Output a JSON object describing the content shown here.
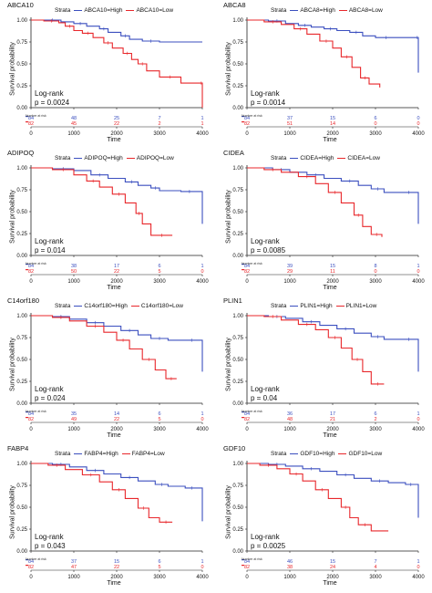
{
  "figure": {
    "y_axis_label": "Survival probability",
    "x_axis_label": "Time",
    "legend_title": "Strata",
    "test_name": "Log-rank",
    "number_at_risk_label": "Number at risk",
    "colors": {
      "high": "#3b4fbf",
      "low": "#e8272b"
    }
  },
  "panels": [
    {
      "gene": "ABCA10",
      "high_label": "ABCA10=High",
      "low_label": "ABCA10=Low",
      "pvalue": "p = 0.0024",
      "nar_high": [
        "84",
        "48",
        "25",
        "7",
        "1"
      ],
      "nar_low": [
        "82",
        "45",
        "22",
        "2",
        "1"
      ]
    },
    {
      "gene": "ABCA8",
      "high_label": "ABCA8=High",
      "low_label": "ABCA8=Low",
      "pvalue": "p = 0.0014",
      "nar_high": [
        "84",
        "37",
        "15",
        "6",
        "0"
      ],
      "nar_low": [
        "82",
        "51",
        "14",
        "0",
        "0"
      ]
    },
    {
      "gene": "ADIPOQ",
      "high_label": "ADIPOQ=High",
      "low_label": "ADIPOQ=Low",
      "pvalue": "p = 0.014",
      "nar_high": [
        "84",
        "38",
        "17",
        "6",
        "1"
      ],
      "nar_low": [
        "82",
        "50",
        "22",
        "5",
        "0"
      ]
    },
    {
      "gene": "CIDEA",
      "high_label": "CIDEA=High",
      "low_label": "CIDEA=Low",
      "pvalue": "p = 0.0085",
      "nar_high": [
        "84",
        "39",
        "15",
        "8",
        "1"
      ],
      "nar_low": [
        "82",
        "29",
        "11",
        "0",
        "0"
      ]
    },
    {
      "gene": "C14orf180",
      "high_label": "C14orf180=High",
      "low_label": "C14orf180=Low",
      "pvalue": "p = 0.024",
      "nar_high": [
        "84",
        "35",
        "14",
        "6",
        "1"
      ],
      "nar_low": [
        "82",
        "49",
        "22",
        "5",
        "0"
      ]
    },
    {
      "gene": "PLIN1",
      "high_label": "PLIN1=High",
      "low_label": "PLIN1=Low",
      "pvalue": "p = 0.04",
      "nar_high": [
        "84",
        "36",
        "17",
        "6",
        "1"
      ],
      "nar_low": [
        "82",
        "48",
        "21",
        "2",
        "0"
      ]
    },
    {
      "gene": "FABP4",
      "high_label": "FABP4=High",
      "low_label": "FABP4=Low",
      "pvalue": "p = 0.043",
      "nar_high": [
        "84",
        "37",
        "15",
        "6",
        "1"
      ],
      "nar_low": [
        "82",
        "47",
        "22",
        "5",
        "0"
      ]
    },
    {
      "gene": "GDF10",
      "high_label": "GDF10=High",
      "low_label": "GDF10=Low",
      "pvalue": "p = 0.0025",
      "nar_high": [
        "84",
        "46",
        "15",
        "7",
        "1"
      ],
      "nar_low": [
        "82",
        "38",
        "24",
        "4",
        "0"
      ]
    }
  ],
  "chart_data": [
    {
      "type": "line",
      "title": "ABCA10",
      "xlabel": "Time",
      "ylabel": "Survival probability",
      "xlim": [
        0,
        4000
      ],
      "ylim": [
        0,
        1
      ],
      "x_ticks": [
        0,
        1000,
        2000,
        3000,
        4000
      ],
      "y_ticks": [
        0,
        0.25,
        0.5,
        0.75,
        1.0
      ],
      "series": [
        {
          "name": "ABCA10=High",
          "x": [
            0,
            300,
            700,
            1000,
            1300,
            1600,
            1800,
            2100,
            2300,
            2600,
            3000,
            4000
          ],
          "y": [
            1.0,
            1.0,
            0.98,
            0.96,
            0.93,
            0.9,
            0.86,
            0.82,
            0.78,
            0.76,
            0.75,
            0.75
          ]
        },
        {
          "name": "ABCA10=Low",
          "x": [
            0,
            300,
            650,
            800,
            1000,
            1200,
            1450,
            1700,
            1900,
            2150,
            2350,
            2500,
            2700,
            3000,
            3500,
            3950,
            4000
          ],
          "y": [
            1.0,
            0.99,
            0.97,
            0.93,
            0.88,
            0.85,
            0.8,
            0.74,
            0.68,
            0.62,
            0.55,
            0.5,
            0.42,
            0.35,
            0.28,
            0.28,
            0.0
          ]
        }
      ]
    },
    {
      "type": "line",
      "title": "ABCA8",
      "xlabel": "Time",
      "ylabel": "Survival probability",
      "xlim": [
        0,
        4000
      ],
      "ylim": [
        0,
        1
      ],
      "x_ticks": [
        0,
        1000,
        2000,
        3000,
        4000
      ],
      "y_ticks": [
        0,
        0.25,
        0.5,
        0.75,
        1.0
      ],
      "series": [
        {
          "name": "ABCA8=High",
          "x": [
            0,
            500,
            900,
            1200,
            1500,
            1800,
            2100,
            2400,
            2700,
            3000,
            3500,
            3950,
            4000
          ],
          "y": [
            1.0,
            0.99,
            0.96,
            0.94,
            0.92,
            0.9,
            0.88,
            0.86,
            0.82,
            0.8,
            0.8,
            0.8,
            0.4
          ]
        },
        {
          "name": "ABCA8=Low",
          "x": [
            0,
            400,
            800,
            1100,
            1400,
            1700,
            2000,
            2200,
            2450,
            2650,
            2850,
            3100
          ],
          "y": [
            1.0,
            0.98,
            0.95,
            0.9,
            0.84,
            0.76,
            0.68,
            0.58,
            0.46,
            0.34,
            0.27,
            0.23
          ]
        }
      ]
    },
    {
      "type": "line",
      "title": "ADIPOQ",
      "xlabel": "Time",
      "ylabel": "Survival probability",
      "xlim": [
        0,
        4000
      ],
      "ylim": [
        0,
        1
      ],
      "x_ticks": [
        0,
        1000,
        2000,
        3000,
        4000
      ],
      "y_ticks": [
        0,
        0.25,
        0.5,
        0.75,
        1.0
      ],
      "series": [
        {
          "name": "ADIPOQ=High",
          "x": [
            0,
            500,
            1000,
            1400,
            1800,
            2200,
            2500,
            2800,
            3000,
            3500,
            3900,
            4000
          ],
          "y": [
            1.0,
            0.99,
            0.97,
            0.92,
            0.88,
            0.84,
            0.8,
            0.77,
            0.74,
            0.73,
            0.73,
            0.36
          ]
        },
        {
          "name": "ADIPOQ=Low",
          "x": [
            0,
            500,
            1000,
            1300,
            1600,
            1900,
            2200,
            2450,
            2600,
            2800,
            3300
          ],
          "y": [
            1.0,
            0.98,
            0.92,
            0.85,
            0.78,
            0.7,
            0.6,
            0.48,
            0.36,
            0.23,
            0.23
          ]
        }
      ]
    },
    {
      "type": "line",
      "title": "CIDEA",
      "xlabel": "Time",
      "ylabel": "Survival probability",
      "xlim": [
        0,
        4000
      ],
      "ylim": [
        0,
        1
      ],
      "x_ticks": [
        0,
        1000,
        2000,
        3000,
        4000
      ],
      "y_ticks": [
        0,
        0.25,
        0.5,
        0.75,
        1.0
      ],
      "series": [
        {
          "name": "CIDEA=High",
          "x": [
            0,
            600,
            1000,
            1400,
            1800,
            2200,
            2600,
            2900,
            3200,
            3600,
            3950,
            4000
          ],
          "y": [
            1.0,
            0.98,
            0.95,
            0.92,
            0.88,
            0.85,
            0.8,
            0.76,
            0.72,
            0.72,
            0.72,
            0.36
          ]
        },
        {
          "name": "CIDEA=Low",
          "x": [
            0,
            400,
            800,
            1200,
            1600,
            1900,
            2200,
            2500,
            2700,
            2900,
            3150
          ],
          "y": [
            1.0,
            0.98,
            0.95,
            0.9,
            0.82,
            0.72,
            0.6,
            0.46,
            0.33,
            0.24,
            0.21
          ]
        }
      ]
    },
    {
      "type": "line",
      "title": "C14orf180",
      "xlabel": "Time",
      "ylabel": "Survival probability",
      "xlim": [
        0,
        4000
      ],
      "ylim": [
        0,
        1
      ],
      "x_ticks": [
        0,
        1000,
        2000,
        3000,
        4000
      ],
      "y_ticks": [
        0,
        0.25,
        0.5,
        0.75,
        1.0
      ],
      "series": [
        {
          "name": "C14orf180=High",
          "x": [
            0,
            500,
            900,
            1300,
            1700,
            2100,
            2500,
            2800,
            3200,
            3600,
            3900,
            4000
          ],
          "y": [
            1.0,
            0.99,
            0.96,
            0.92,
            0.88,
            0.83,
            0.78,
            0.74,
            0.72,
            0.72,
            0.72,
            0.36
          ]
        },
        {
          "name": "C14orf180=Low",
          "x": [
            0,
            500,
            900,
            1300,
            1700,
            2000,
            2300,
            2600,
            2900,
            3150,
            3400
          ],
          "y": [
            1.0,
            0.98,
            0.94,
            0.88,
            0.81,
            0.72,
            0.62,
            0.5,
            0.38,
            0.28,
            0.28
          ]
        }
      ]
    },
    {
      "type": "line",
      "title": "PLIN1",
      "xlabel": "Time",
      "ylabel": "Survival probability",
      "xlim": [
        0,
        4000
      ],
      "ylim": [
        0,
        1
      ],
      "x_ticks": [
        0,
        1000,
        2000,
        3000,
        4000
      ],
      "y_ticks": [
        0,
        0.25,
        0.5,
        0.75,
        1.0
      ],
      "series": [
        {
          "name": "PLIN1=High",
          "x": [
            0,
            500,
            900,
            1300,
            1700,
            2100,
            2500,
            2900,
            3200,
            3600,
            3950,
            4000
          ],
          "y": [
            1.0,
            0.99,
            0.97,
            0.93,
            0.89,
            0.85,
            0.8,
            0.76,
            0.73,
            0.73,
            0.73,
            0.36
          ]
        },
        {
          "name": "PLIN1=Low",
          "x": [
            0,
            400,
            800,
            1200,
            1600,
            1900,
            2200,
            2450,
            2700,
            2900,
            3200
          ],
          "y": [
            1.0,
            0.99,
            0.95,
            0.9,
            0.84,
            0.75,
            0.63,
            0.5,
            0.36,
            0.22,
            0.22
          ]
        }
      ]
    },
    {
      "type": "line",
      "title": "FABP4",
      "xlabel": "Time",
      "ylabel": "Survival probability",
      "xlim": [
        0,
        4000
      ],
      "ylim": [
        0,
        1
      ],
      "x_ticks": [
        0,
        1000,
        2000,
        3000,
        4000
      ],
      "y_ticks": [
        0,
        0.25,
        0.5,
        0.75,
        1.0
      ],
      "series": [
        {
          "name": "FABP4=High",
          "x": [
            0,
            500,
            900,
            1300,
            1700,
            2100,
            2500,
            2900,
            3200,
            3600,
            3900,
            4000
          ],
          "y": [
            1.0,
            0.99,
            0.96,
            0.92,
            0.88,
            0.84,
            0.8,
            0.76,
            0.74,
            0.72,
            0.72,
            0.34
          ]
        },
        {
          "name": "FABP4=Low",
          "x": [
            0,
            400,
            800,
            1200,
            1600,
            1900,
            2200,
            2500,
            2750,
            3000,
            3300
          ],
          "y": [
            1.0,
            0.98,
            0.93,
            0.87,
            0.79,
            0.7,
            0.6,
            0.49,
            0.38,
            0.33,
            0.33
          ]
        }
      ]
    },
    {
      "type": "line",
      "title": "GDF10",
      "xlabel": "Time",
      "ylabel": "Survival probability",
      "xlim": [
        0,
        4000
      ],
      "ylim": [
        0,
        1
      ],
      "x_ticks": [
        0,
        1000,
        2000,
        3000,
        4000
      ],
      "y_ticks": [
        0,
        0.25,
        0.5,
        0.75,
        1.0
      ],
      "series": [
        {
          "name": "GDF10=High",
          "x": [
            0,
            500,
            900,
            1300,
            1700,
            2100,
            2500,
            2900,
            3300,
            3700,
            3950,
            4000
          ],
          "y": [
            1.0,
            0.99,
            0.97,
            0.94,
            0.91,
            0.87,
            0.83,
            0.8,
            0.78,
            0.76,
            0.76,
            0.38
          ]
        },
        {
          "name": "GDF10=Low",
          "x": [
            0,
            300,
            700,
            1000,
            1300,
            1600,
            1900,
            2200,
            2400,
            2600,
            2900,
            3300
          ],
          "y": [
            1.0,
            0.98,
            0.94,
            0.88,
            0.8,
            0.7,
            0.6,
            0.5,
            0.38,
            0.3,
            0.23,
            0.23
          ]
        }
      ]
    }
  ]
}
